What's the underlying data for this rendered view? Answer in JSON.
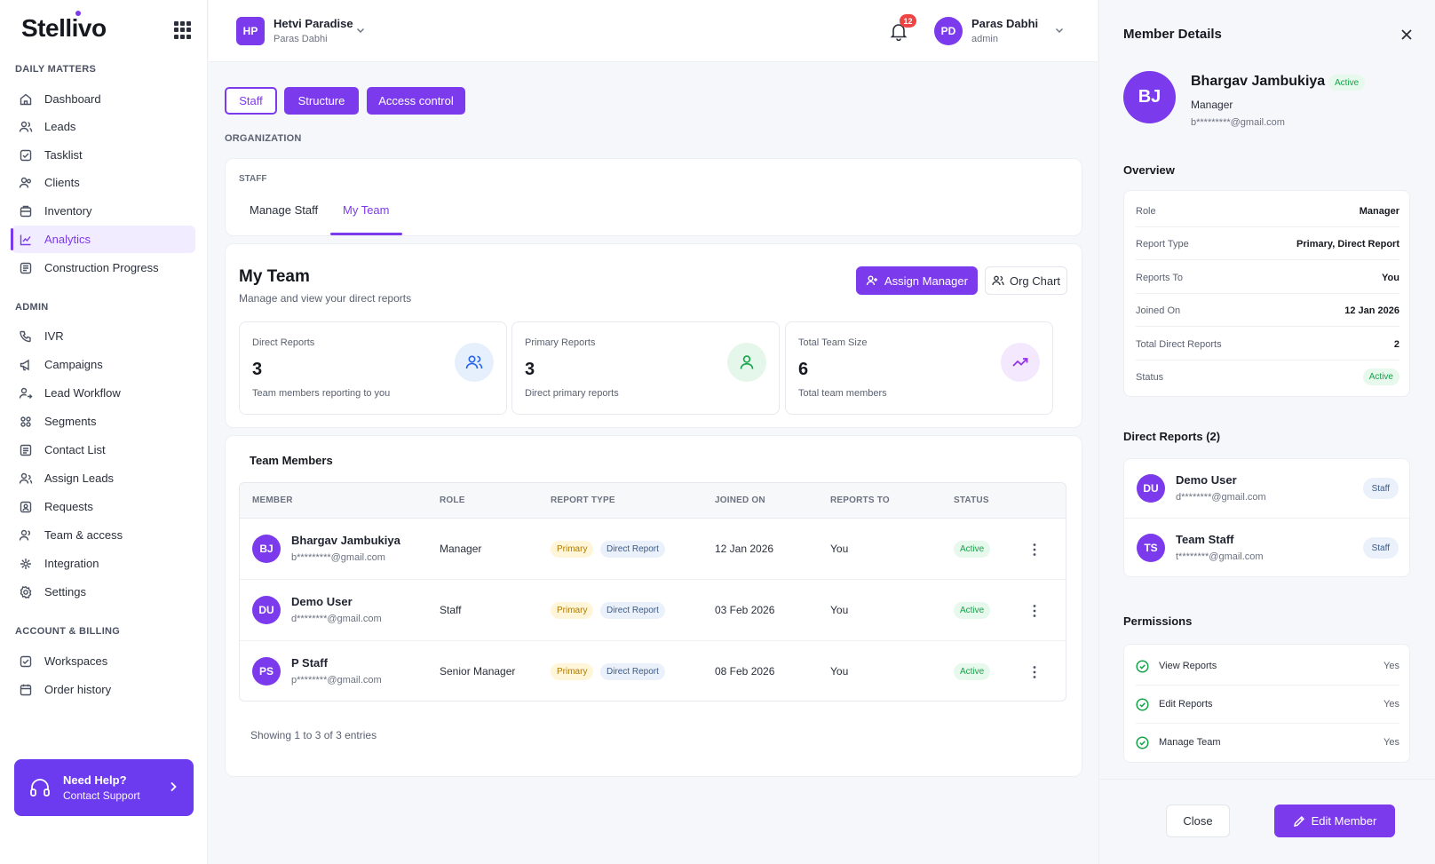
{
  "brand": {
    "name": "Stellivo"
  },
  "sidebar": {
    "sections": [
      {
        "title": "DAILY MATTERS",
        "items": [
          {
            "label": "Dashboard",
            "icon": "home-icon"
          },
          {
            "label": "Leads",
            "icon": "users-icon"
          },
          {
            "label": "Tasklist",
            "icon": "checklist-icon"
          },
          {
            "label": "Clients",
            "icon": "user-group-icon"
          },
          {
            "label": "Inventory",
            "icon": "box-icon"
          },
          {
            "label": "Analytics",
            "icon": "chart-icon",
            "active": true
          },
          {
            "label": "Construction Progress",
            "icon": "progress-icon"
          }
        ]
      },
      {
        "title": "ADMIN",
        "items": [
          {
            "label": "IVR",
            "icon": "phone-icon"
          },
          {
            "label": "Campaigns",
            "icon": "megaphone-icon"
          },
          {
            "label": "Lead Workflow",
            "icon": "workflow-icon"
          },
          {
            "label": "Segments",
            "icon": "segments-icon"
          },
          {
            "label": "Contact List",
            "icon": "contact-list-icon"
          },
          {
            "label": "Assign Leads",
            "icon": "assign-icon"
          },
          {
            "label": "Requests",
            "icon": "requests-icon"
          },
          {
            "label": "Team & access",
            "icon": "team-icon"
          },
          {
            "label": "Integration",
            "icon": "integration-icon"
          },
          {
            "label": "Settings",
            "icon": "gear-icon"
          }
        ]
      },
      {
        "title": "ACCOUNT & BILLING",
        "items": [
          {
            "label": "Workspaces",
            "icon": "workspace-icon"
          },
          {
            "label": "Order history",
            "icon": "calendar-icon"
          }
        ]
      }
    ],
    "help": {
      "title": "Need Help?",
      "subtitle": "Contact Support"
    }
  },
  "header": {
    "workspace": {
      "initials": "HP",
      "name": "Hetvi Paradise",
      "owner": "Paras Dabhi"
    },
    "notifications": {
      "count": "12"
    },
    "user": {
      "initials": "PD",
      "name": "Paras Dabhi",
      "role": "admin"
    }
  },
  "main": {
    "top_tabs": [
      "Staff",
      "Structure",
      "Access control"
    ],
    "section_label": "ORGANIZATION",
    "staff_label": "STAFF",
    "sub_tabs": [
      "Manage Staff",
      "My Team"
    ],
    "my_team": {
      "title": "My Team",
      "subtitle": "Manage and view your direct reports",
      "assign_label": "Assign Manager",
      "org_chart_label": "Org Chart",
      "stats": [
        {
          "label": "Direct Reports",
          "value": "3",
          "desc": "Team members reporting to you",
          "color": "#2563eb",
          "bg": "#e6f0fd"
        },
        {
          "label": "Primary Reports",
          "value": "3",
          "desc": "Direct primary reports",
          "color": "#16a34a",
          "bg": "#e4f7ea"
        },
        {
          "label": "Total Team Size",
          "value": "6",
          "desc": "Total team members",
          "color": "#9333ea",
          "bg": "#f3e8fd"
        }
      ]
    },
    "team_members": {
      "title": "Team Members",
      "columns": [
        "MEMBER",
        "ROLE",
        "REPORT TYPE",
        "JOINED ON",
        "REPORTS TO",
        "STATUS"
      ],
      "rows": [
        {
          "initials": "BJ",
          "name": "Bhargav Jambukiya",
          "email": "b*********@gmail.com",
          "role": "Manager",
          "type1": "Primary",
          "type2": "Direct Report",
          "joined": "12 Jan 2026",
          "reports_to": "You",
          "status": "Active"
        },
        {
          "initials": "DU",
          "name": "Demo User",
          "email": "d********@gmail.com",
          "role": "Staff",
          "type1": "Primary",
          "type2": "Direct Report",
          "joined": "03 Feb 2026",
          "reports_to": "You",
          "status": "Active"
        },
        {
          "initials": "PS",
          "name": "P Staff",
          "email": "p********@gmail.com",
          "role": "Senior Manager",
          "type1": "Primary",
          "type2": "Direct Report",
          "joined": "08 Feb 2026",
          "reports_to": "You",
          "status": "Active"
        }
      ],
      "showing": "Showing 1 to 3 of 3 entries"
    }
  },
  "panel": {
    "title": "Member Details",
    "member": {
      "initials": "BJ",
      "name": "Bhargav Jambukiya",
      "status": "Active",
      "role": "Manager",
      "email": "b*********@gmail.com"
    },
    "overview_title": "Overview",
    "overview": [
      {
        "k": "Role",
        "v": "Manager"
      },
      {
        "k": "Report Type",
        "v": "Primary, Direct Report"
      },
      {
        "k": "Reports To",
        "v": "You"
      },
      {
        "k": "Joined On",
        "v": "12 Jan 2026"
      },
      {
        "k": "Total Direct Reports",
        "v": "2"
      },
      {
        "k": "Status",
        "v": "Active"
      }
    ],
    "direct_reports_title": "Direct Reports (2)",
    "direct_reports": [
      {
        "initials": "DU",
        "name": "Demo User",
        "email": "d********@gmail.com",
        "role": "Staff"
      },
      {
        "initials": "TS",
        "name": "Team Staff",
        "email": "t********@gmail.com",
        "role": "Staff"
      }
    ],
    "permissions_title": "Permissions",
    "permissions": [
      {
        "k": "View Reports",
        "v": "Yes"
      },
      {
        "k": "Edit Reports",
        "v": "Yes"
      },
      {
        "k": "Manage Team",
        "v": "Yes"
      }
    ],
    "close_label": "Close",
    "edit_label": "Edit Member"
  }
}
